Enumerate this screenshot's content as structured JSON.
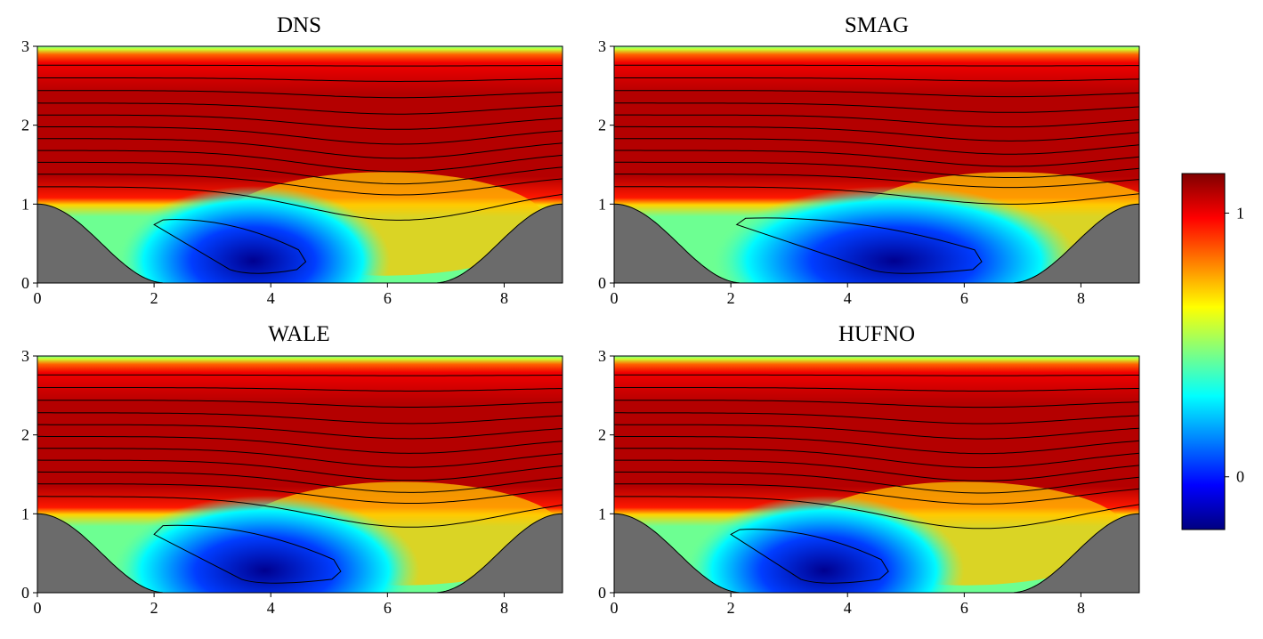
{
  "figure": {
    "description_free": true
  },
  "chart_data": [
    {
      "type": "heatmap",
      "title": "DNS",
      "xlim": [
        0,
        9
      ],
      "ylim": [
        0,
        3
      ],
      "xticks": [
        0,
        2,
        4,
        6,
        8
      ],
      "yticks": [
        0,
        1,
        2,
        3
      ],
      "xtick_labels": [
        "0",
        "2",
        "4",
        "6",
        "8"
      ],
      "ytick_labels": [
        "0",
        "1",
        "2",
        "3"
      ],
      "hill_height": 1.0,
      "recirculation": {
        "x_start": 2.0,
        "x_end": 4.6,
        "y_top": 0.8,
        "core_x": 3.7
      },
      "lowest_streamline_min": {
        "x": 6.2,
        "y": 0.74
      }
    },
    {
      "type": "heatmap",
      "title": "SMAG",
      "xlim": [
        0,
        9
      ],
      "ylim": [
        0,
        3
      ],
      "xticks": [
        0,
        2,
        4,
        6,
        8
      ],
      "yticks": [
        0,
        1,
        2,
        3
      ],
      "xtick_labels": [
        "0",
        "2",
        "4",
        "6",
        "8"
      ],
      "ytick_labels": [
        "0",
        "1",
        "2",
        "3"
      ],
      "hill_height": 1.0,
      "recirculation": {
        "x_start": 2.1,
        "x_end": 6.3,
        "y_top": 0.82,
        "core_x": 4.8
      },
      "lowest_streamline_min": {
        "x": 6.8,
        "y": 0.97
      }
    },
    {
      "type": "heatmap",
      "title": "WALE",
      "xlim": [
        0,
        9
      ],
      "ylim": [
        0,
        3
      ],
      "xticks": [
        0,
        2,
        4,
        6,
        8
      ],
      "yticks": [
        0,
        1,
        2,
        3
      ],
      "xtick_labels": [
        "0",
        "2",
        "4",
        "6",
        "8"
      ],
      "ytick_labels": [
        "0",
        "1",
        "2",
        "3"
      ],
      "hill_height": 1.0,
      "recirculation": {
        "x_start": 2.0,
        "x_end": 5.2,
        "y_top": 0.85,
        "core_x": 3.9
      },
      "lowest_streamline_min": {
        "x": 6.4,
        "y": 0.78
      }
    },
    {
      "type": "heatmap",
      "title": "HUFNO",
      "xlim": [
        0,
        9
      ],
      "ylim": [
        0,
        3
      ],
      "xticks": [
        0,
        2,
        4,
        6,
        8
      ],
      "yticks": [
        0,
        1,
        2,
        3
      ],
      "xtick_labels": [
        "0",
        "2",
        "4",
        "6",
        "8"
      ],
      "ytick_labels": [
        "0",
        "1",
        "2",
        "3"
      ],
      "hill_height": 1.0,
      "recirculation": {
        "x_start": 2.0,
        "x_end": 4.7,
        "y_top": 0.8,
        "core_x": 3.6
      },
      "lowest_streamline_min": {
        "x": 6.3,
        "y": 0.76
      }
    }
  ],
  "colorbar": {
    "colormap": "jet",
    "vmin": -0.2,
    "vmax": 1.15,
    "ticks": [
      0,
      1
    ],
    "tick_labels": [
      "0",
      "1"
    ]
  },
  "colors": {
    "hill_fill": "#6b6b6b",
    "contour_line": "#000000"
  }
}
